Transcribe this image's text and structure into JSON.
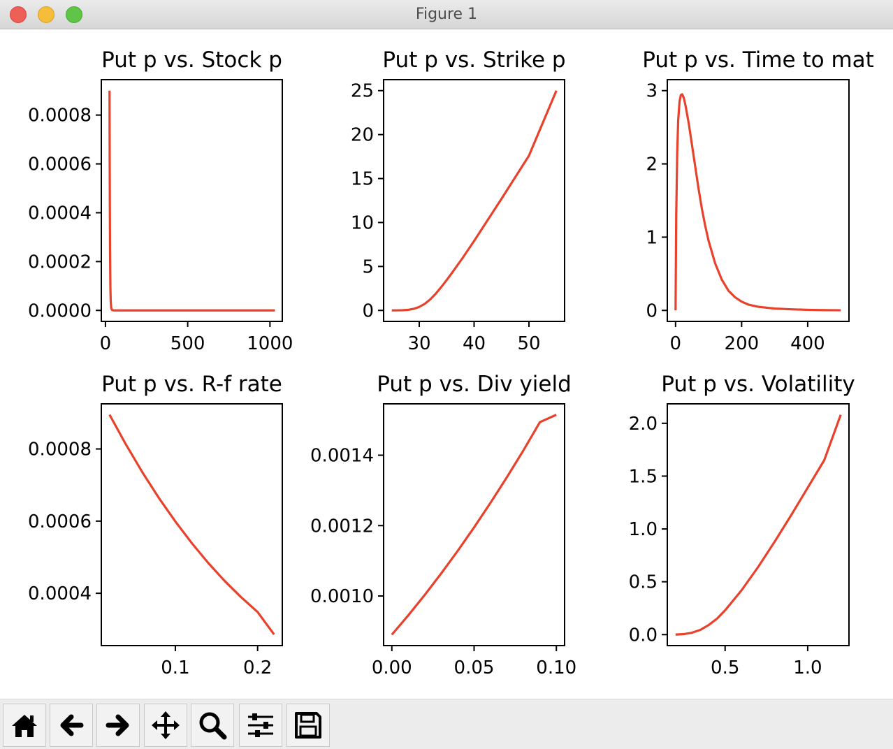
{
  "window": {
    "title": "Figure 1"
  },
  "colors": {
    "line": "#e8412c",
    "axes": "#000000",
    "text": "#000000"
  },
  "toolbar": {
    "buttons": [
      "home-icon",
      "back-arrow-icon",
      "forward-arrow-icon",
      "pan-icon",
      "zoom-icon",
      "subplots-config-icon",
      "save-icon"
    ]
  },
  "chart_data": [
    {
      "type": "line",
      "title": "Put p vs. Stock p",
      "xlim": [
        -25,
        1075
      ],
      "ylim": [
        -4.5e-05,
        0.000945
      ],
      "xticks": [
        0,
        500,
        1000
      ],
      "xtick_labels": [
        "0",
        "500",
        "1000"
      ],
      "yticks": [
        0,
        0.0002,
        0.0004,
        0.0006,
        0.0008
      ],
      "ytick_labels": [
        "0.0000",
        "0.0002",
        "0.0004",
        "0.0006",
        "0.0008"
      ],
      "series": [
        {
          "x": [
            25,
            25.5,
            26,
            27,
            28,
            30,
            32,
            35,
            40,
            50,
            100,
            200,
            400,
            600,
            800,
            1030
          ],
          "y": [
            0.0009,
            0.00075,
            0.0006,
            0.0004,
            0.00025,
            0.0001,
            4e-05,
            1e-05,
            2e-06,
            0,
            0,
            0,
            0,
            0,
            0,
            0
          ]
        }
      ]
    },
    {
      "type": "line",
      "title": "Put p vs. Strike p",
      "xlim": [
        23.5,
        56.5
      ],
      "ylim": [
        -1.25,
        26.25
      ],
      "xticks": [
        30,
        40,
        50
      ],
      "xtick_labels": [
        "30",
        "40",
        "50"
      ],
      "yticks": [
        0,
        5,
        10,
        15,
        20,
        25
      ],
      "ytick_labels": [
        "0",
        "5",
        "10",
        "15",
        "20",
        "25"
      ],
      "series": [
        {
          "x": [
            25,
            26,
            27,
            28,
            29,
            30,
            31,
            32,
            33,
            34,
            35,
            36,
            38,
            40,
            45,
            50,
            55
          ],
          "y": [
            0.001,
            0.005,
            0.02,
            0.07,
            0.18,
            0.4,
            0.75,
            1.25,
            1.9,
            2.65,
            3.45,
            4.3,
            6.05,
            7.9,
            12.7,
            17.6,
            25
          ]
        }
      ]
    },
    {
      "type": "line",
      "title": "Put p vs. Time to mat",
      "xlim": [
        -25,
        525
      ],
      "ylim": [
        -0.15,
        3.15
      ],
      "xticks": [
        0,
        200,
        400
      ],
      "xtick_labels": [
        "0",
        "200",
        "400"
      ],
      "yticks": [
        0,
        1,
        2,
        3
      ],
      "ytick_labels": [
        "0",
        "1",
        "2",
        "3"
      ],
      "series": [
        {
          "x": [
            0,
            2,
            5,
            8,
            12,
            16,
            20,
            25,
            30,
            40,
            50,
            60,
            70,
            80,
            90,
            100,
            120,
            140,
            160,
            180,
            200,
            220,
            250,
            300,
            350,
            400,
            450,
            500
          ],
          "y": [
            0,
            1.3,
            2.15,
            2.6,
            2.85,
            2.94,
            2.95,
            2.9,
            2.8,
            2.55,
            2.25,
            1.95,
            1.65,
            1.38,
            1.15,
            0.95,
            0.64,
            0.42,
            0.27,
            0.18,
            0.12,
            0.08,
            0.05,
            0.025,
            0.015,
            0.008,
            0.004,
            0.002
          ]
        }
      ]
    },
    {
      "type": "line",
      "title": "Put p vs. R-f rate",
      "xlim": [
        0.01,
        0.23
      ],
      "ylim": [
        0.000255,
        0.000925
      ],
      "xticks": [
        0.1,
        0.2
      ],
      "xtick_labels": [
        "0.1",
        "0.2"
      ],
      "yticks": [
        0.0004,
        0.0006,
        0.0008
      ],
      "ytick_labels": [
        "0.0004",
        "0.0006",
        "0.0008"
      ],
      "series": [
        {
          "x": [
            0.02,
            0.04,
            0.06,
            0.08,
            0.1,
            0.12,
            0.14,
            0.16,
            0.18,
            0.2,
            0.22
          ],
          "y": [
            0.000895,
            0.000812,
            0.000735,
            0.000664,
            0.000599,
            0.000539,
            0.000484,
            0.000434,
            0.000389,
            0.000348,
            0.000286
          ]
        }
      ]
    },
    {
      "type": "line",
      "title": "Put p vs. Div yield",
      "xlim": [
        -0.005,
        0.105
      ],
      "ylim": [
        0.000859,
        0.001546
      ],
      "xticks": [
        0,
        0.05,
        0.1
      ],
      "xtick_labels": [
        "0.00",
        "0.05",
        "0.10"
      ],
      "yticks": [
        0.001,
        0.0012,
        0.0014
      ],
      "ytick_labels": [
        "0.0010",
        "0.0012",
        "0.0014"
      ],
      "series": [
        {
          "x": [
            0,
            0.01,
            0.02,
            0.03,
            0.04,
            0.05,
            0.06,
            0.07,
            0.08,
            0.09,
            0.1
          ],
          "y": [
            0.00089,
            0.000945,
            0.001003,
            0.001064,
            0.001128,
            0.001195,
            0.001265,
            0.001338,
            0.001414,
            0.001494,
            0.001515
          ]
        }
      ]
    },
    {
      "type": "line",
      "title": "Put p vs. Volatility",
      "xlim": [
        0.15,
        1.25
      ],
      "ylim": [
        -0.104,
        2.184
      ],
      "xticks": [
        0.5,
        1.0
      ],
      "xtick_labels": [
        "0.5",
        "1.0"
      ],
      "yticks": [
        0,
        0.5,
        1,
        1.5,
        2
      ],
      "ytick_labels": [
        "0.0",
        "0.5",
        "1.0",
        "1.5",
        "2.0"
      ],
      "series": [
        {
          "x": [
            0.2,
            0.25,
            0.3,
            0.35,
            0.4,
            0.45,
            0.5,
            0.6,
            0.7,
            0.8,
            0.9,
            1.0,
            1.1,
            1.2
          ],
          "y": [
            0,
            0.005,
            0.018,
            0.045,
            0.09,
            0.15,
            0.23,
            0.42,
            0.64,
            0.88,
            1.13,
            1.39,
            1.65,
            2.08
          ]
        }
      ]
    }
  ]
}
